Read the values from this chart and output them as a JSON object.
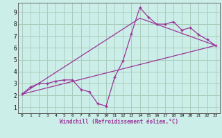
{
  "background_color": "#cceee8",
  "grid_color": "#aaccbb",
  "line_color": "#993399",
  "marker_color": "#993399",
  "xlabel": "Windchill (Refroidissement éolien,°C)",
  "xlim": [
    -0.5,
    23.5
  ],
  "ylim": [
    0.5,
    9.8
  ],
  "xticks": [
    0,
    1,
    2,
    3,
    4,
    5,
    6,
    7,
    8,
    9,
    10,
    11,
    12,
    13,
    14,
    15,
    16,
    17,
    18,
    19,
    20,
    21,
    22,
    23
  ],
  "yticks": [
    1,
    2,
    3,
    4,
    5,
    6,
    7,
    8,
    9
  ],
  "line1_x": [
    0,
    1,
    2,
    3,
    4,
    5,
    6,
    7,
    8,
    9,
    10,
    11,
    12,
    13,
    14,
    15,
    16,
    17,
    18,
    19,
    20,
    21,
    22,
    23
  ],
  "line1_y": [
    2.1,
    2.7,
    3.0,
    3.0,
    3.2,
    3.3,
    3.3,
    2.5,
    2.3,
    1.3,
    1.1,
    3.5,
    4.9,
    7.2,
    9.4,
    8.6,
    8.0,
    8.0,
    8.2,
    7.5,
    7.7,
    7.1,
    6.7,
    6.2
  ],
  "line2_x": [
    0,
    23
  ],
  "line2_y": [
    2.1,
    6.2
  ],
  "line3_x": [
    0,
    14,
    23
  ],
  "line3_y": [
    2.1,
    8.5,
    6.2
  ]
}
